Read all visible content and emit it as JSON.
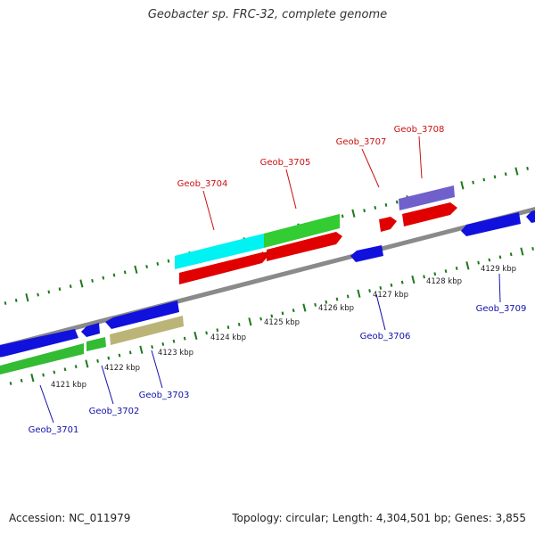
{
  "title": "Geobacter sp. FRC-32, complete genome",
  "footer": {
    "accession": "Accession: NC_011979",
    "summary": "Topology: circular; Length: 4,304,501 bp; Genes: 3,855"
  },
  "colors": {
    "backbone": "#8a8a8a",
    "tick": "#1a7a1a",
    "label_forward": "#cc1111",
    "label_reverse": "#1111aa",
    "leader": "#444444",
    "scale_text": "#222222"
  },
  "scale": {
    "unit": "kbp",
    "labels": [
      "4121 kbp",
      "4122 kbp",
      "4123 kbp",
      "4124 kbp",
      "4125 kbp",
      "4126 kbp",
      "4127 kbp",
      "4128 kbp",
      "4129 kbp"
    ]
  },
  "genes": [
    {
      "id": "Geob_3701",
      "strand": "-",
      "label": "Geob_3701"
    },
    {
      "id": "Geob_3702",
      "strand": "-",
      "label": "Geob_3702"
    },
    {
      "id": "Geob_3703",
      "strand": "-",
      "label": "Geob_3703"
    },
    {
      "id": "Geob_3704",
      "strand": "+",
      "label": "Geob_3704"
    },
    {
      "id": "Geob_3705",
      "strand": "+",
      "label": "Geob_3705"
    },
    {
      "id": "Geob_3706",
      "strand": "-",
      "label": "Geob_3706"
    },
    {
      "id": "Geob_3707",
      "strand": "+",
      "label": "Geob_3707"
    },
    {
      "id": "Geob_3708",
      "strand": "+",
      "label": "Geob_3708"
    },
    {
      "id": "Geob_3709",
      "strand": "-",
      "label": "Geob_3709"
    }
  ]
}
